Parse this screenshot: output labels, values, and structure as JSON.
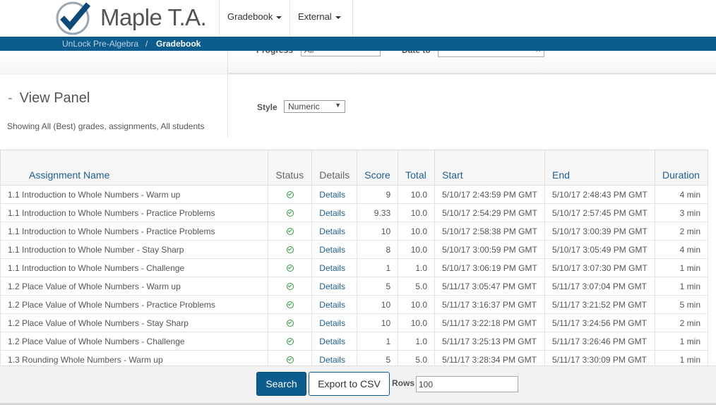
{
  "header": {
    "logo_text": "Maple T.A.",
    "nav": [
      {
        "label": "Gradebook"
      },
      {
        "label": "External"
      }
    ]
  },
  "breadcrumb": {
    "items": [
      "UnLock Pre-Algebra",
      "Gradebook"
    ],
    "separator": "/"
  },
  "filters": {
    "progress_label": "Progress",
    "progress_value": "All",
    "date_to_label": "Date to",
    "date_to_value": "",
    "clear_glyph": "×"
  },
  "view_panel": {
    "toggle": "-",
    "title": "View Panel",
    "summary": "Showing All (Best) grades, assignments, All students",
    "style_label": "Style",
    "style_value": "Numeric",
    "select_arrow": "▼"
  },
  "table": {
    "columns": [
      "Assignment Name",
      "Status",
      "Details",
      "Score",
      "Total",
      "Start",
      "End",
      "Duration"
    ],
    "rows": [
      {
        "name": "1.1 Introduction to Whole Numbers - Warm up",
        "status": "complete",
        "details": "Details",
        "score": "9",
        "total": "10.0",
        "start": "5/10/17 2:43:59 PM GMT",
        "end": "5/10/17 2:48:43 PM GMT",
        "duration": "4 min"
      },
      {
        "name": "1.1 Introduction to Whole Numbers - Practice Problems",
        "status": "complete",
        "details": "Details",
        "score": "9.33",
        "total": "10.0",
        "start": "5/10/17 2:54:29 PM GMT",
        "end": "5/10/17 2:57:45 PM GMT",
        "duration": "3 min"
      },
      {
        "name": "1.1 Introduction to Whole Numbers - Practice Problems",
        "status": "complete",
        "details": "Details",
        "score": "10",
        "total": "10.0",
        "start": "5/10/17 2:58:38 PM GMT",
        "end": "5/10/17 3:00:39 PM GMT",
        "duration": "2 min"
      },
      {
        "name": "1.1 Introduction to Whole Number - Stay Sharp",
        "status": "complete",
        "details": "Details",
        "score": "8",
        "total": "10.0",
        "start": "5/10/17 3:00:59 PM GMT",
        "end": "5/10/17 3:05:49 PM GMT",
        "duration": "4 min"
      },
      {
        "name": "1.1 Introduction to Whole Numbers - Challenge",
        "status": "complete",
        "details": "Details",
        "score": "1",
        "total": "1.0",
        "start": "5/10/17 3:06:19 PM GMT",
        "end": "5/10/17 3:07:30 PM GMT",
        "duration": "1 min"
      },
      {
        "name": "1.2 Place Value of Whole Numbers - Warm up",
        "status": "complete",
        "details": "Details",
        "score": "5",
        "total": "5.0",
        "start": "5/11/17 3:05:47 PM GMT",
        "end": "5/11/17 3:07:04 PM GMT",
        "duration": "1 min"
      },
      {
        "name": "1.2 Place Value of Whole Numbers - Practice Problems",
        "status": "complete",
        "details": "Details",
        "score": "10",
        "total": "10.0",
        "start": "5/11/17 3:16:37 PM GMT",
        "end": "5/11/17 3:21:52 PM GMT",
        "duration": "5 min"
      },
      {
        "name": "1.2 Place Value of Whole Numbers - Stay Sharp",
        "status": "complete",
        "details": "Details",
        "score": "10",
        "total": "10.0",
        "start": "5/11/17 3:22:18 PM GMT",
        "end": "5/11/17 3:24:56 PM GMT",
        "duration": "2 min"
      },
      {
        "name": "1.2 Place Value of Whole Numbers - Challenge",
        "status": "complete",
        "details": "Details",
        "score": "1",
        "total": "1.0",
        "start": "5/11/17 3:25:13 PM GMT",
        "end": "5/11/17 3:26:46 PM GMT",
        "duration": "1 min"
      },
      {
        "name": "1.3 Rounding Whole Numbers - Warm up",
        "status": "complete",
        "details": "Details",
        "score": "5",
        "total": "5.0",
        "start": "5/11/17 3:28:34 PM GMT",
        "end": "5/11/17 3:30:09 PM GMT",
        "duration": "1 min"
      }
    ]
  },
  "footer": {
    "search_label": "Search",
    "export_label": "Export to CSV",
    "rows_label": "Rows",
    "rows_value": "100"
  },
  "colors": {
    "brand_blue": "#0d5c8e",
    "link_blue": "#1c5f95",
    "status_green": "#2e9a3a"
  },
  "icons": {
    "logo": "checkmark-logo-icon",
    "status": "check-circle-icon",
    "nav_caret": "caret-down-icon"
  }
}
